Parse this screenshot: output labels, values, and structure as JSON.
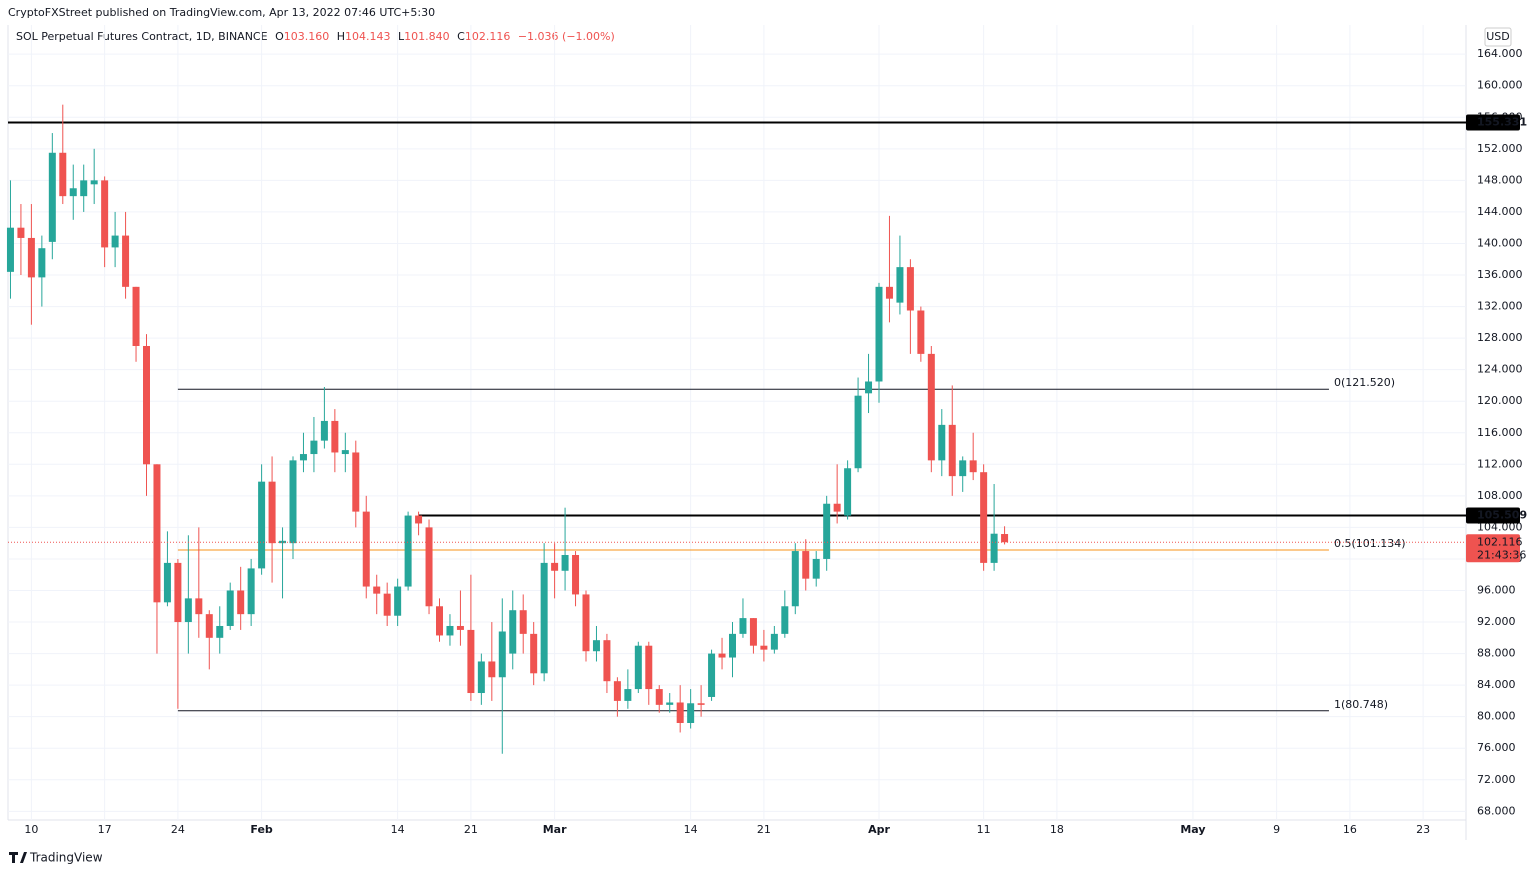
{
  "header": {
    "publisher": "CryptoFXStreet published on TradingView.com, Apr 13, 2022 07:46 UTC+5:30",
    "symbol": "SOL Perpetual Futures Contract, 1D, BINANCE",
    "o_label": "O",
    "o": "103.160",
    "h_label": "H",
    "h": "104.143",
    "l_label": "L",
    "l": "101.840",
    "c_label": "C",
    "c": "102.116",
    "change": "−1.036 (−1.00%)"
  },
  "chart_data": {
    "type": "candlestick",
    "currency": "USD",
    "up_color": "#26a69a",
    "down_color": "#ef5350",
    "x": [
      "Jan 8",
      "Jan 9",
      "Jan 10",
      "Jan 11",
      "Jan 12",
      "Jan 13",
      "Jan 14",
      "Jan 15",
      "Jan 16",
      "Jan 17",
      "Jan 18",
      "Jan 19",
      "Jan 20",
      "Jan 21",
      "Jan 22",
      "Jan 23",
      "Jan 24",
      "Jan 25",
      "Jan 26",
      "Jan 27",
      "Jan 28",
      "Jan 29",
      "Jan 30",
      "Jan 31",
      "Feb 1",
      "Feb 2",
      "Feb 3",
      "Feb 4",
      "Feb 5",
      "Feb 6",
      "Feb 7",
      "Feb 8",
      "Feb 9",
      "Feb 10",
      "Feb 11",
      "Feb 12",
      "Feb 13",
      "Feb 14",
      "Feb 15",
      "Feb 16",
      "Feb 17",
      "Feb 18",
      "Feb 19",
      "Feb 20",
      "Feb 21",
      "Feb 22",
      "Feb 23",
      "Feb 24",
      "Feb 25",
      "Feb 26",
      "Feb 27",
      "Feb 28",
      "Mar 1",
      "Mar 2",
      "Mar 3",
      "Mar 4",
      "Mar 5",
      "Mar 6",
      "Mar 7",
      "Mar 8",
      "Mar 9",
      "Mar 10",
      "Mar 11",
      "Mar 12",
      "Mar 13",
      "Mar 14",
      "Mar 15",
      "Mar 16",
      "Mar 17",
      "Mar 18",
      "Mar 19",
      "Mar 20",
      "Mar 21",
      "Mar 22",
      "Mar 23",
      "Mar 24",
      "Mar 25",
      "Mar 26",
      "Mar 27",
      "Mar 28",
      "Mar 29",
      "Mar 30",
      "Mar 31",
      "Apr 1",
      "Apr 2",
      "Apr 3",
      "Apr 4",
      "Apr 5",
      "Apr 6",
      "Apr 7",
      "Apr 8",
      "Apr 9",
      "Apr 10",
      "Apr 11",
      "Apr 12",
      "Apr 13"
    ],
    "open": [
      136.4,
      142,
      140.7,
      135.7,
      140.2,
      151.5,
      146,
      146,
      147.5,
      148,
      139.5,
      141,
      134.5,
      127,
      112,
      94.5,
      99.5,
      92,
      95,
      93,
      90,
      91.5,
      96,
      93,
      98.8,
      109.8,
      102,
      102,
      112.5,
      113.3,
      115,
      117.5,
      113.3,
      113.5,
      106,
      96.5,
      95.6,
      92.8,
      96.5,
      105.5,
      104,
      94,
      90.3,
      91.5,
      91,
      83,
      87,
      85,
      88,
      93.5,
      90.5,
      85.5,
      99.5,
      98.5,
      100.5,
      95.5,
      88.3,
      89.7,
      84.5,
      82,
      83.5,
      89,
      83.5,
      81.5,
      81.8,
      79.2,
      81.7,
      82.5,
      88,
      87.5,
      90.5,
      92.5,
      89,
      88.5,
      90.5,
      94,
      101,
      97.5,
      100,
      107,
      105.5,
      111.5,
      121,
      122.5,
      134.5,
      132.5,
      137,
      131.5,
      126,
      112.5,
      117,
      110.5,
      112.5,
      111,
      99.5,
      103.16
    ],
    "high": [
      148,
      145,
      145,
      141,
      154,
      157.6,
      150,
      150,
      152,
      148.5,
      144,
      144,
      134.5,
      128.5,
      112,
      103.5,
      100,
      103,
      104,
      93.5,
      94,
      97,
      99,
      100,
      112,
      113,
      104,
      113,
      116,
      118,
      121.8,
      119,
      116,
      115,
      108,
      98,
      97,
      97.5,
      106,
      106,
      105,
      95,
      93,
      96,
      98,
      88,
      92,
      95,
      96,
      95.5,
      92,
      102,
      102,
      106.5,
      101,
      96,
      91.5,
      90.5,
      85,
      86,
      89.5,
      89.5,
      84,
      83,
      84,
      83.5,
      84,
      88.5,
      90,
      92,
      95,
      92.5,
      91,
      91.5,
      96,
      102,
      102.5,
      101,
      108,
      112,
      112.5,
      123,
      126,
      135,
      143.5,
      141,
      138,
      132,
      127,
      119,
      122,
      113,
      116,
      112,
      109.5,
      104.143
    ],
    "low": [
      133,
      136,
      129.7,
      132,
      138,
      145,
      143,
      144,
      145,
      137,
      137,
      133,
      125,
      108,
      88,
      94,
      81,
      88,
      90,
      86,
      88,
      91,
      91,
      91.5,
      98,
      97,
      95,
      100,
      111,
      111,
      114,
      111,
      111,
      104,
      95,
      93,
      91.5,
      91.5,
      96,
      103,
      93,
      89.5,
      89,
      89,
      82,
      81.5,
      82,
      75.3,
      86,
      88,
      84,
      84.5,
      95,
      96,
      94,
      87,
      87,
      83,
      80,
      81,
      83,
      81.5,
      80.5,
      80.5,
      78,
      78.5,
      80,
      82,
      86,
      85,
      90,
      88,
      87,
      88,
      90,
      93,
      96,
      96.5,
      98.5,
      104.5,
      105,
      111,
      118.5,
      119.8,
      130,
      131,
      126,
      125,
      111,
      110.5,
      108,
      108.5,
      110,
      98.5,
      98.5,
      101.84
    ],
    "close": [
      142,
      140.7,
      135.7,
      139.4,
      151.5,
      146,
      147,
      148,
      148,
      139.5,
      141,
      134.5,
      127,
      112,
      94.5,
      99.5,
      92,
      95,
      93,
      90,
      91.5,
      96,
      93,
      98.8,
      109.8,
      102,
      102.3,
      112.5,
      113.3,
      115,
      117.5,
      113.5,
      113.8,
      106,
      96.5,
      95.6,
      92.8,
      96.5,
      105.5,
      104.5,
      94,
      90.3,
      91.5,
      91,
      83,
      87,
      85,
      90.8,
      93.5,
      90.5,
      85.5,
      99.5,
      98.5,
      100.5,
      95.5,
      88.3,
      89.7,
      84.5,
      82,
      83.5,
      89,
      83.5,
      81.5,
      81.8,
      79.2,
      81.7,
      81.5,
      88,
      87.5,
      90.5,
      92.5,
      89,
      88.5,
      90.5,
      94,
      101,
      97.5,
      100,
      107,
      106,
      111.5,
      120.7,
      122.5,
      134.5,
      133,
      137,
      131.5,
      126,
      112.5,
      117,
      110.5,
      112.5,
      111,
      99.5,
      103.2,
      102.116
    ],
    "xlim": [
      "Jan 7",
      "May 27"
    ],
    "xticks": [
      {
        "value": "Jan 10",
        "label": "10"
      },
      {
        "value": "Jan 17",
        "label": "17"
      },
      {
        "value": "Jan 24",
        "label": "24"
      },
      {
        "value": "Feb 1",
        "label": "Feb"
      },
      {
        "value": "Feb 14",
        "label": "14"
      },
      {
        "value": "Feb 21",
        "label": "21"
      },
      {
        "value": "Mar 1",
        "label": "Mar"
      },
      {
        "value": "Mar 14",
        "label": "14"
      },
      {
        "value": "Mar 21",
        "label": "21"
      },
      {
        "value": "Apr 1",
        "label": "Apr"
      },
      {
        "value": "Apr 11",
        "label": "11"
      },
      {
        "value": "Apr 18",
        "label": "18"
      },
      {
        "value": "May 1",
        "label": "May"
      },
      {
        "value": "May 9",
        "label": "9"
      },
      {
        "value": "May 16",
        "label": "16"
      },
      {
        "value": "May 23",
        "label": "23"
      }
    ],
    "ylim": [
      66.9,
      167.7
    ],
    "yticks": [
      {
        "value": 68,
        "label": "68.000"
      },
      {
        "value": 72,
        "label": "72.000"
      },
      {
        "value": 76,
        "label": "76.000"
      },
      {
        "value": 80,
        "label": "80.000"
      },
      {
        "value": 84,
        "label": "84.000"
      },
      {
        "value": 88,
        "label": "88.000"
      },
      {
        "value": 92,
        "label": "92.000"
      },
      {
        "value": 96,
        "label": "96.000"
      },
      {
        "value": 100,
        "label": "100.000"
      },
      {
        "value": 104,
        "label": "104.000"
      },
      {
        "value": 108,
        "label": "108.000"
      },
      {
        "value": 112,
        "label": "112.000"
      },
      {
        "value": 116,
        "label": "116.000"
      },
      {
        "value": 120,
        "label": "120.000"
      },
      {
        "value": 124,
        "label": "124.000"
      },
      {
        "value": 128,
        "label": "128.000"
      },
      {
        "value": 132,
        "label": "132.000"
      },
      {
        "value": 136,
        "label": "136.000"
      },
      {
        "value": 140,
        "label": "140.000"
      },
      {
        "value": 144,
        "label": "144.000"
      },
      {
        "value": 148,
        "label": "148.000"
      },
      {
        "value": 152,
        "label": "152.000"
      },
      {
        "value": 156,
        "label": "156.000"
      },
      {
        "value": 160,
        "label": "160.000"
      },
      {
        "value": 164,
        "label": "164.000"
      }
    ],
    "grid": true,
    "levels": [
      {
        "value": 155.331,
        "start": "Jan 7",
        "color": "#000000"
      },
      {
        "value": 105.509,
        "start": "Feb 16",
        "color": "#000000"
      }
    ],
    "fib": {
      "start": "Jan 24",
      "end": "May 14",
      "levels": [
        {
          "value": 121.52,
          "label": "0(121.520)",
          "color": "#131722"
        },
        {
          "value": 101.134,
          "label": "0.5(101.134)",
          "color": "#f7931a"
        },
        {
          "value": 80.748,
          "label": "1(80.748)",
          "color": "#131722"
        }
      ]
    },
    "countdown": "21:43:36"
  },
  "footer": {
    "brand": "TradingView"
  }
}
